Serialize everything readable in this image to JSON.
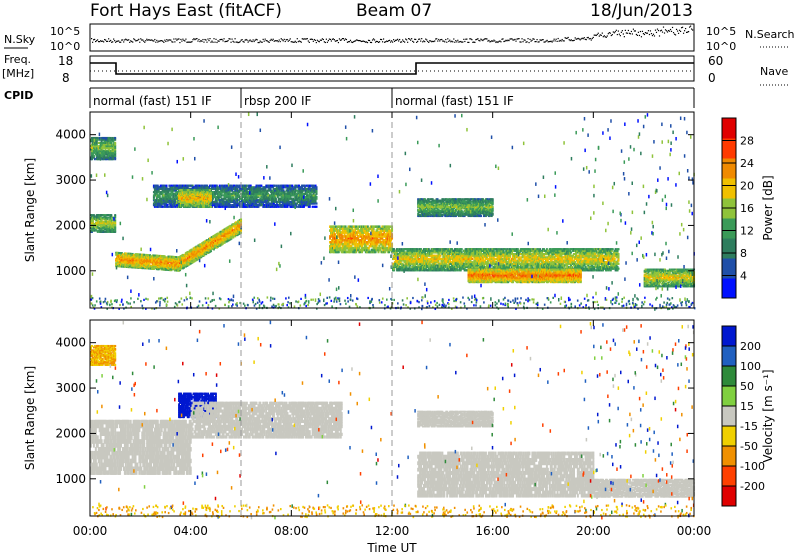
{
  "header": {
    "title": "Fort Hays East (fitACF)",
    "beam": "Beam 07",
    "date": "18/Jun/2013"
  },
  "top_panels": {
    "nsky_label": "N.Sky",
    "nsearch_label": "N.Search",
    "noise_ticks": [
      "10^5",
      "10^0"
    ],
    "freq_label": "Freq.",
    "freq_unit": "[MHz]",
    "freq_ticks": [
      "18",
      "8"
    ],
    "nave_label": "Nave",
    "nave_ticks": [
      "60",
      "0"
    ],
    "cpid_label": "CPID"
  },
  "cpid_modes": [
    {
      "label": "normal (fast) 151 IF",
      "start_h": 0,
      "end_h": 6
    },
    {
      "label": "rbsp 200 IF",
      "start_h": 6,
      "end_h": 12
    },
    {
      "label": "normal (fast) 151 IF",
      "start_h": 12,
      "end_h": 24
    }
  ],
  "chart_data": [
    {
      "type": "heatmap",
      "title": "Power",
      "ylabel": "Slant Range [km]",
      "xlabel": "Time UT",
      "xlim": [
        0,
        24
      ],
      "ylim": [
        180,
        4500
      ],
      "x_ticks": [
        "00:00",
        "04:00",
        "08:00",
        "12:00",
        "16:00",
        "20:00",
        "00:00"
      ],
      "y_ticks": [
        1000,
        2000,
        3000,
        4000
      ],
      "colorbar": {
        "label": "Power [dB]",
        "ticks": [
          4,
          8,
          12,
          16,
          20,
          24,
          28
        ],
        "min": 0,
        "max": 32,
        "colors": [
          "#0010ff",
          "#1f4fa8",
          "#2e7d5e",
          "#3a9a58",
          "#8fc33a",
          "#f0c000",
          "#f08a00",
          "#ff3a00",
          "#e00000"
        ]
      },
      "echo_bands": [
        {
          "t": [
            0,
            1
          ],
          "range": [
            3450,
            3950
          ],
          "power": 14
        },
        {
          "t": [
            0,
            1
          ],
          "range": [
            1850,
            2250
          ],
          "power": 16
        },
        {
          "t": [
            1,
            6
          ],
          "range_start": [
            1250,
            1000
          ],
          "range_mid": 1150,
          "range_end": [
            1900,
            2000
          ],
          "power": 22
        },
        {
          "t": [
            2.5,
            9
          ],
          "range": [
            2400,
            2900
          ],
          "power": 10
        },
        {
          "t": [
            3.5,
            4.8
          ],
          "range": [
            2400,
            2800
          ],
          "power": 20
        },
        {
          "t": [
            9.5,
            12
          ],
          "range": [
            1400,
            2000
          ],
          "power": 22
        },
        {
          "t": [
            13,
            16
          ],
          "range": [
            2200,
            2600
          ],
          "power": 14
        },
        {
          "t": [
            12,
            21
          ],
          "range": [
            1000,
            1500
          ],
          "power": 18
        },
        {
          "t": [
            15,
            19.5
          ],
          "range": [
            750,
            1050
          ],
          "power": 24
        },
        {
          "t": [
            22,
            24
          ],
          "range": [
            650,
            1050
          ],
          "power": 18
        }
      ]
    },
    {
      "type": "heatmap",
      "title": "Velocity",
      "ylabel": "Slant Range [km]",
      "xlabel": "Time UT",
      "xlim": [
        0,
        24
      ],
      "ylim": [
        180,
        4500
      ],
      "x_ticks": [
        "00:00",
        "04:00",
        "08:00",
        "12:00",
        "16:00",
        "20:00",
        "00:00"
      ],
      "y_ticks": [
        1000,
        2000,
        3000,
        4000
      ],
      "colorbar": {
        "label": "Velocity [m s^-1]",
        "ticks": [
          200,
          100,
          50,
          15,
          -15,
          -50,
          -100,
          -200
        ],
        "colors": [
          "#0018d0",
          "#2060c0",
          "#2e8a3a",
          "#80d040",
          "#c8c8c0",
          "#f0d000",
          "#f09000",
          "#ff4000",
          "#e00000"
        ]
      },
      "echo_bands": [
        {
          "t": [
            0,
            1
          ],
          "range": [
            3500,
            3950
          ],
          "velocity": -50
        },
        {
          "t": [
            0,
            4
          ],
          "range": [
            1100,
            2300
          ],
          "velocity": 0
        },
        {
          "t": [
            3.5,
            5
          ],
          "range": [
            2350,
            2900
          ],
          "velocity": 180
        },
        {
          "t": [
            4,
            10
          ],
          "range": [
            1900,
            2700
          ],
          "velocity": 0
        },
        {
          "t": [
            13,
            20
          ],
          "range": [
            600,
            1600
          ],
          "velocity": 0
        },
        {
          "t": [
            13,
            16
          ],
          "range": [
            2150,
            2500
          ],
          "velocity": 0
        },
        {
          "t": [
            20,
            24
          ],
          "range": [
            600,
            1000
          ],
          "velocity": 0
        }
      ]
    }
  ]
}
